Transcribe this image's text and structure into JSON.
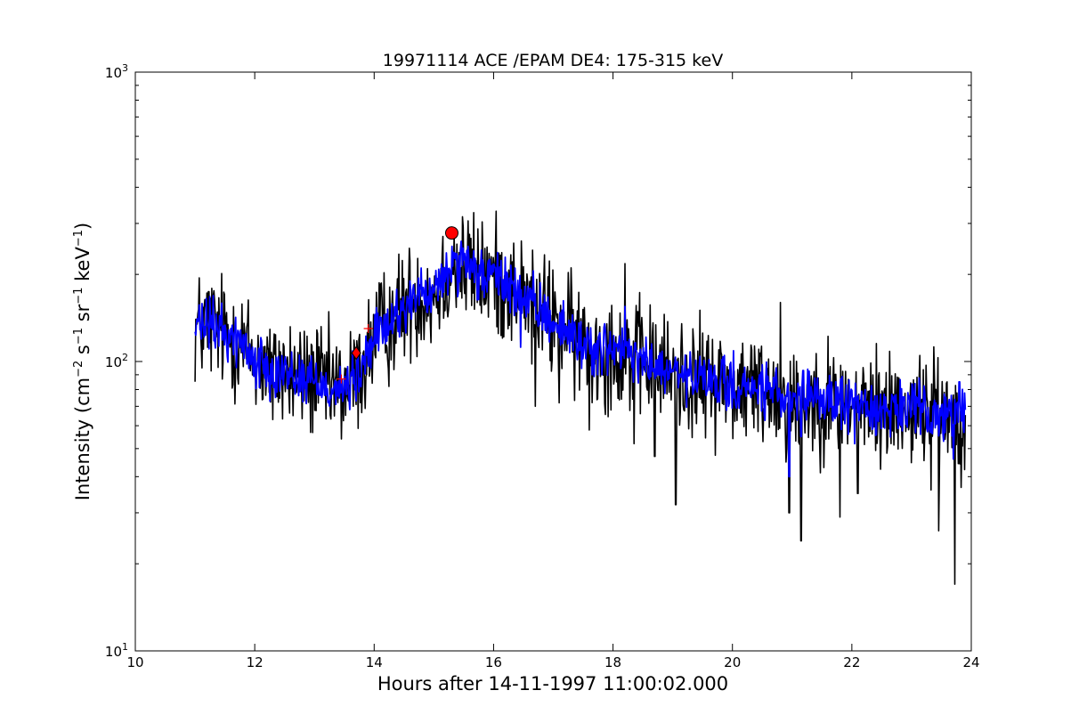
{
  "chart_data": {
    "type": "line",
    "title": "19971114 ACE /EPAM DE4: 175-315 keV",
    "xlabel": "Hours after 14-11-1997 11:00:02.000",
    "ylabel": {
      "prefix": "Intensity (cm",
      "exp1": "−2",
      "mid1": " s",
      "exp2": "−1",
      "mid2": " sr",
      "exp3": "−1",
      "mid3": " keV",
      "exp4": "−1",
      "suffix": ")"
    },
    "xlim": [
      10,
      24
    ],
    "ylim": [
      10,
      1000
    ],
    "yscale": "log",
    "grid": false,
    "legend": "none",
    "xticks": [
      10,
      12,
      14,
      16,
      18,
      20,
      22,
      24
    ],
    "xtick_labels": [
      "10",
      "12",
      "14",
      "16",
      "18",
      "20",
      "22",
      "24"
    ],
    "yticks": [
      {
        "base": "10",
        "exp": "1",
        "value": 10
      },
      {
        "base": "10",
        "exp": "2",
        "value": 100
      },
      {
        "base": "10",
        "exp": "3",
        "value": 1000
      }
    ],
    "series": [
      {
        "role": "raw",
        "color": "#000000",
        "x": [
          11.0,
          11.25,
          11.5,
          11.75,
          12.0,
          12.25,
          12.5,
          12.75,
          13.0,
          13.25,
          13.5,
          13.75,
          14.0,
          14.25,
          14.5,
          14.75,
          15.0,
          15.3,
          15.5,
          15.75,
          16.0,
          16.25,
          16.5,
          16.75,
          17.0,
          17.25,
          17.5,
          17.75,
          18.0,
          18.25,
          18.5,
          18.75,
          19.0,
          19.25,
          19.5,
          19.75,
          20.0,
          20.25,
          20.5,
          20.75,
          21.0,
          21.25,
          21.5,
          21.75,
          22.0,
          22.25,
          22.5,
          22.75,
          23.0,
          23.25,
          23.5,
          23.75,
          23.9
        ],
        "y": [
          130,
          135,
          125,
          118,
          100,
          96,
          92,
          88,
          86,
          82,
          80,
          90,
          120,
          135,
          155,
          170,
          170,
          215,
          210,
          200,
          195,
          185,
          165,
          150,
          140,
          125,
          115,
          110,
          110,
          105,
          100,
          95,
          90,
          88,
          85,
          85,
          82,
          80,
          80,
          78,
          70,
          75,
          75,
          72,
          72,
          70,
          68,
          70,
          68,
          67,
          66,
          64,
          65
        ],
        "noise": 0.1,
        "spikes": [
          {
            "x": 12.3,
            "y": 63
          },
          {
            "x": 13.45,
            "y": 54
          },
          {
            "x": 15.6,
            "y": 275
          },
          {
            "x": 16.7,
            "y": 70
          },
          {
            "x": 17.1,
            "y": 72
          },
          {
            "x": 17.6,
            "y": 58
          },
          {
            "x": 18.2,
            "y": 218
          },
          {
            "x": 18.35,
            "y": 52
          },
          {
            "x": 18.7,
            "y": 47
          },
          {
            "x": 19.05,
            "y": 32
          },
          {
            "x": 20.8,
            "y": 160
          },
          {
            "x": 20.95,
            "y": 30
          },
          {
            "x": 21.15,
            "y": 24
          },
          {
            "x": 21.8,
            "y": 29
          },
          {
            "x": 22.1,
            "y": 35
          },
          {
            "x": 23.45,
            "y": 26
          },
          {
            "x": 23.72,
            "y": 17
          },
          {
            "x": 23.85,
            "y": 51
          }
        ]
      },
      {
        "role": "smoothed",
        "color": "#0000ff",
        "x": [
          11.0,
          11.25,
          11.5,
          11.75,
          12.0,
          12.25,
          12.5,
          12.75,
          13.0,
          13.25,
          13.5,
          13.75,
          14.0,
          14.25,
          14.5,
          14.75,
          15.0,
          15.3,
          15.5,
          15.75,
          16.0,
          16.25,
          16.5,
          16.75,
          17.0,
          17.25,
          17.5,
          17.75,
          18.0,
          18.25,
          18.5,
          18.75,
          19.0,
          19.25,
          19.5,
          19.75,
          20.0,
          20.25,
          20.5,
          20.75,
          21.0,
          21.25,
          21.5,
          21.75,
          22.0,
          22.25,
          22.5,
          22.75,
          23.0,
          23.25,
          23.5,
          23.75,
          23.9
        ],
        "y": [
          130,
          135,
          125,
          118,
          100,
          96,
          92,
          88,
          86,
          82,
          80,
          90,
          120,
          135,
          155,
          170,
          170,
          215,
          210,
          200,
          195,
          185,
          165,
          150,
          140,
          125,
          115,
          110,
          110,
          105,
          100,
          95,
          90,
          88,
          85,
          85,
          82,
          80,
          80,
          78,
          70,
          75,
          75,
          72,
          72,
          70,
          68,
          70,
          68,
          67,
          66,
          64,
          65
        ],
        "noise": 0.045,
        "spikes": [
          {
            "x": 15.3,
            "y": 250
          },
          {
            "x": 16.45,
            "y": 112
          },
          {
            "x": 18.2,
            "y": 155
          },
          {
            "x": 20.95,
            "y": 40
          },
          {
            "x": 21.15,
            "y": 55
          },
          {
            "x": 22.05,
            "y": 52
          },
          {
            "x": 23.7,
            "y": 46
          },
          {
            "x": 23.8,
            "y": 85
          }
        ]
      }
    ],
    "markers": [
      {
        "shape": "circle",
        "x": 15.3,
        "y": 278,
        "color": "#ff0000"
      },
      {
        "shape": "diamond",
        "x": 13.7,
        "y": 107,
        "color": "#ff0000"
      },
      {
        "shape": "plus",
        "x": 13.9,
        "y": 130,
        "color": "#ff0000"
      },
      {
        "shape": "plus",
        "x": 13.45,
        "y": 87,
        "color": "#ff0000"
      }
    ]
  }
}
